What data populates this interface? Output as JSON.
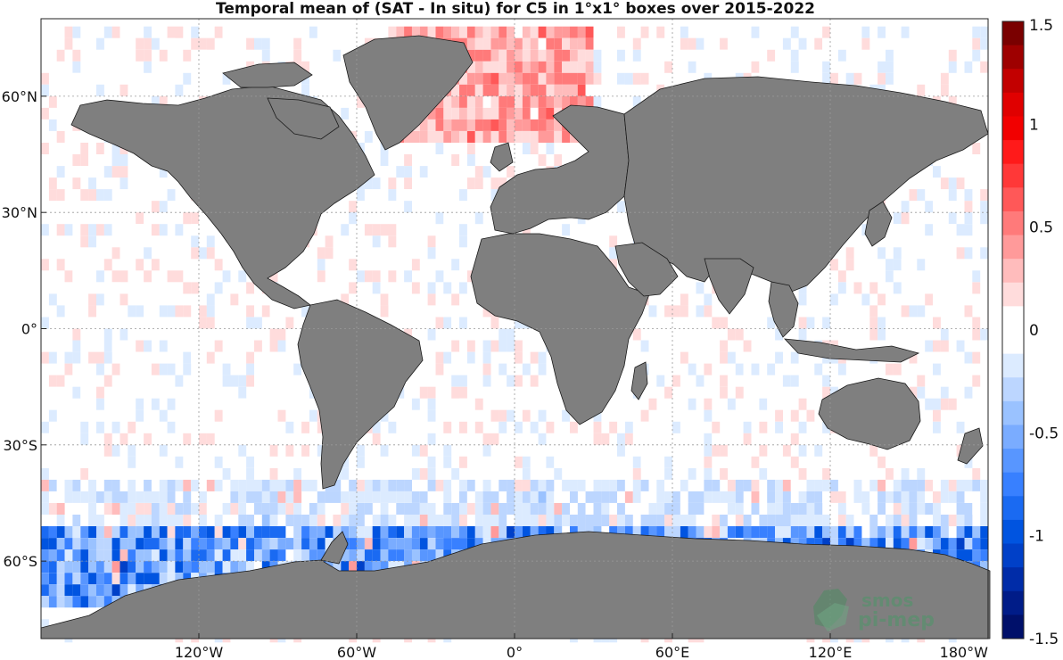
{
  "title": "Temporal mean of (SAT - In situ) for C5 in 1°x1° boxes over 2015-2022",
  "map": {
    "projection": "equirectangular",
    "lon_range": [
      -180,
      180
    ],
    "lat_range": [
      -80,
      80
    ],
    "grid": true,
    "land_color": "#7f7f7f",
    "ocean_color": "#ffffff",
    "lon_ticks": [
      {
        "lon": -120,
        "label": "120°W"
      },
      {
        "lon": -60,
        "label": "60°W"
      },
      {
        "lon": 0,
        "label": "0°"
      },
      {
        "lon": 60,
        "label": "60°E"
      },
      {
        "lon": 120,
        "label": "120°E"
      },
      {
        "lon": 180,
        "label": "180°W"
      }
    ],
    "lat_ticks": [
      {
        "lat": 60,
        "label": "60°N"
      },
      {
        "lat": 30,
        "label": "30°N"
      },
      {
        "lat": 0,
        "label": "0°"
      },
      {
        "lat": -30,
        "label": "30°S"
      },
      {
        "lat": -60,
        "label": "60°S"
      }
    ]
  },
  "colorbar": {
    "range": [
      -1.5,
      1.5
    ],
    "labels": [
      "1.5",
      "1",
      "0.5",
      "0",
      "-0.5",
      "-1",
      "-1.5"
    ],
    "label_values": [
      1.5,
      1,
      0.5,
      0,
      -0.5,
      -1,
      -1.5
    ],
    "colors_top_to_bottom": [
      "#7a0000",
      "#9e0000",
      "#c20000",
      "#e00000",
      "#f20000",
      "#ff1a1a",
      "#ff3838",
      "#ff5858",
      "#ff7a7a",
      "#ff9a9a",
      "#ffbcbc",
      "#ffdcdc",
      "#ffffff",
      "#ffffff",
      "#dcebff",
      "#bcd6ff",
      "#9ac2ff",
      "#7aacff",
      "#5896ff",
      "#3880ff",
      "#1a6af2",
      "#0054e0",
      "#0040c8",
      "#002ca8",
      "#001c88",
      "#00106a"
    ]
  },
  "watermark": {
    "line1": "smos",
    "line2": "pi-mep"
  }
}
